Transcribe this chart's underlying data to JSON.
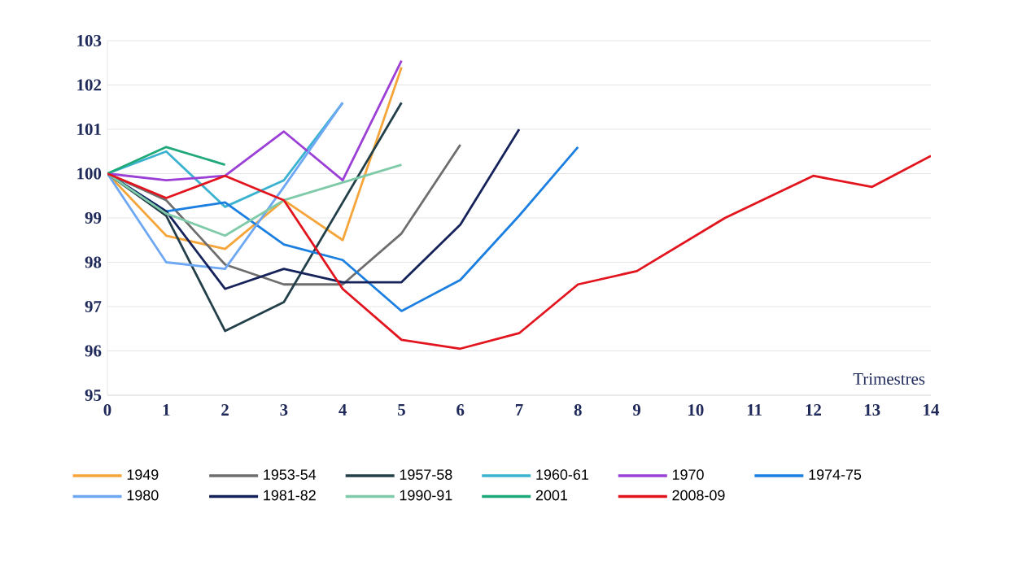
{
  "chart_data": {
    "type": "line",
    "xlabel": "Trimestres",
    "xlim": [
      0,
      14
    ],
    "xticks": [
      0,
      1,
      2,
      3,
      4,
      5,
      6,
      7,
      8,
      9,
      10,
      11,
      12,
      13,
      14
    ],
    "ylim": [
      95,
      103
    ],
    "yticks": [
      95,
      96,
      97,
      98,
      99,
      100,
      101,
      102,
      103
    ],
    "grid": "y",
    "legend": "bottom",
    "line_style": "solid",
    "series": [
      {
        "name": "1949",
        "color": "#f5a53a",
        "x": [
          0,
          1,
          2,
          3,
          4,
          5
        ],
        "values": [
          100,
          98.6,
          98.3,
          99.4,
          98.5,
          102.4
        ]
      },
      {
        "name": "1953-54",
        "color": "#6e6e6e",
        "x": [
          0,
          1,
          2,
          3,
          4,
          5,
          6
        ],
        "values": [
          100,
          99.4,
          97.95,
          97.5,
          97.5,
          98.65,
          100.65
        ]
      },
      {
        "name": "1957-58",
        "color": "#23404a",
        "x": [
          0,
          1,
          2,
          3,
          5
        ],
        "values": [
          100,
          99.05,
          96.45,
          97.1,
          101.6
        ]
      },
      {
        "name": "1960-61",
        "color": "#3bb3d0",
        "x": [
          0,
          1,
          2,
          3,
          4
        ],
        "values": [
          100,
          100.5,
          99.25,
          99.85,
          101.6
        ]
      },
      {
        "name": "1970",
        "color": "#9b3fd6",
        "x": [
          0,
          1,
          2,
          3,
          4,
          5
        ],
        "values": [
          100,
          99.85,
          99.95,
          100.95,
          99.85,
          102.55
        ]
      },
      {
        "name": "1974-75",
        "color": "#1a7fe0",
        "x": [
          0,
          1,
          2,
          3,
          4,
          5,
          6,
          7,
          8
        ],
        "values": [
          100,
          99.15,
          99.35,
          98.4,
          98.05,
          96.9,
          97.6,
          99.05,
          100.6
        ]
      },
      {
        "name": "1980",
        "color": "#6ea8f5",
        "x": [
          0,
          1,
          2,
          3,
          4
        ],
        "values": [
          100,
          98,
          97.85,
          99.7,
          101.6
        ]
      },
      {
        "name": "1981-82",
        "color": "#16225a",
        "x": [
          0,
          1,
          2,
          3,
          4,
          5,
          6,
          7
        ],
        "values": [
          100,
          99.15,
          97.4,
          97.85,
          97.55,
          97.55,
          98.85,
          101
        ]
      },
      {
        "name": "1990-91",
        "color": "#7fcaa8",
        "x": [
          0,
          1,
          2,
          3,
          4,
          5
        ],
        "values": [
          100,
          99.1,
          98.6,
          99.4,
          99.8,
          100.2
        ]
      },
      {
        "name": "2001",
        "color": "#1fa878",
        "x": [
          0,
          1,
          2
        ],
        "values": [
          100,
          100.6,
          100.2
        ]
      },
      {
        "name": "2008-09",
        "color": "#e2141e",
        "x": [
          0,
          1,
          2,
          3,
          4,
          5,
          6,
          7,
          8,
          9,
          10.5,
          12,
          13,
          14
        ],
        "values": [
          100,
          99.45,
          99.95,
          99.4,
          97.4,
          96.25,
          96.05,
          96.4,
          97.5,
          97.8,
          99.0,
          99.95,
          99.7,
          100.4
        ]
      }
    ]
  }
}
